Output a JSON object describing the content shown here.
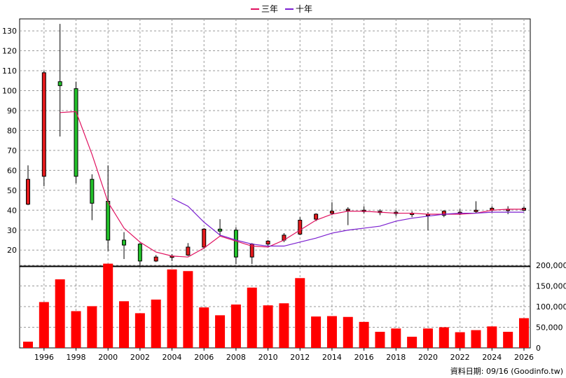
{
  "legend": [
    {
      "label": "三年",
      "color": "#e0115f"
    },
    {
      "label": "十年",
      "color": "#7b1fd0"
    }
  ],
  "footer": "資料日期: 09/16 (Goodinfo.tw)",
  "colors": {
    "up": "#e41a1c",
    "down": "#22c02a",
    "volume": "#ff0000",
    "grid": "#9a9a9a"
  },
  "chart_data": [
    {
      "type": "candlestick",
      "title": "",
      "ylim": [
        12,
        136
      ],
      "yticks": [
        20,
        30,
        40,
        50,
        60,
        70,
        80,
        90,
        100,
        110,
        120,
        130
      ],
      "grid": true,
      "legend_position": "top-center",
      "candles": [
        {
          "year": 1995,
          "open": 43,
          "high": 62.5,
          "low": 42.5,
          "close": 55.5
        },
        {
          "year": 1996,
          "open": 57,
          "high": 110,
          "low": 52,
          "close": 109
        },
        {
          "year": 1997,
          "open": 104.5,
          "high": 133.5,
          "low": 77,
          "close": 102.5
        },
        {
          "year": 1998,
          "open": 101,
          "high": 104.5,
          "low": 53.5,
          "close": 57
        },
        {
          "year": 1999,
          "open": 55.5,
          "high": 58,
          "low": 35,
          "close": 43.5
        },
        {
          "year": 2000,
          "open": 44.5,
          "high": 62.5,
          "low": 19.5,
          "close": 25
        },
        {
          "year": 2001,
          "open": 25,
          "high": 29,
          "low": 15.5,
          "close": 22.5
        },
        {
          "year": 2002,
          "open": 23,
          "high": 23.5,
          "low": 11.5,
          "close": 14.5
        },
        {
          "year": 2003,
          "open": 14.5,
          "high": 17.5,
          "low": 14,
          "close": 16.5
        },
        {
          "year": 2004,
          "open": 16.5,
          "high": 18,
          "low": 14.5,
          "close": 17
        },
        {
          "year": 2005,
          "open": 17.5,
          "high": 23.5,
          "low": 17,
          "close": 21.5
        },
        {
          "year": 2006,
          "open": 21.5,
          "high": 31,
          "low": 20.5,
          "close": 30.5
        },
        {
          "year": 2007,
          "open": 30.5,
          "high": 35.5,
          "low": 27,
          "close": 29.5
        },
        {
          "year": 2008,
          "open": 30,
          "high": 31.5,
          "low": 13,
          "close": 16.5
        },
        {
          "year": 2009,
          "open": 16.5,
          "high": 23.5,
          "low": 13,
          "close": 23
        },
        {
          "year": 2010,
          "open": 23,
          "high": 25,
          "low": 22,
          "close": 24.5
        },
        {
          "year": 2011,
          "open": 25,
          "high": 28.5,
          "low": 24,
          "close": 27.5
        },
        {
          "year": 2012,
          "open": 28,
          "high": 36.5,
          "low": 27.5,
          "close": 35
        },
        {
          "year": 2013,
          "open": 35.5,
          "high": 38.5,
          "low": 34.5,
          "close": 38
        },
        {
          "year": 2014,
          "open": 38.5,
          "high": 44,
          "low": 37.5,
          "close": 39.5
        },
        {
          "year": 2015,
          "open": 40,
          "high": 41.5,
          "low": 32.5,
          "close": 40.5
        },
        {
          "year": 2016,
          "open": 39.5,
          "high": 42,
          "low": 38.5,
          "close": 40
        },
        {
          "year": 2017,
          "open": 39,
          "high": 40.5,
          "low": 37.5,
          "close": 39.5
        },
        {
          "year": 2018,
          "open": 38.5,
          "high": 40,
          "low": 37,
          "close": 39
        },
        {
          "year": 2019,
          "open": 38,
          "high": 39.5,
          "low": 36.5,
          "close": 38.5
        },
        {
          "year": 2020,
          "open": 37.5,
          "high": 39,
          "low": 30,
          "close": 38
        },
        {
          "year": 2021,
          "open": 37.5,
          "high": 40,
          "low": 36.5,
          "close": 39.5
        },
        {
          "year": 2022,
          "open": 38.5,
          "high": 40.5,
          "low": 37.5,
          "close": 39
        },
        {
          "year": 2023,
          "open": 39.5,
          "high": 44.5,
          "low": 38.5,
          "close": 40
        },
        {
          "year": 2024,
          "open": 40,
          "high": 42,
          "low": 39,
          "close": 41
        },
        {
          "year": 2025,
          "open": 40.5,
          "high": 42,
          "low": 38,
          "close": 40.5
        },
        {
          "year": 2026,
          "open": 40,
          "high": 42,
          "low": 39.5,
          "close": 41
        }
      ],
      "series": [
        {
          "name": "三年",
          "color": "#e0115f",
          "x": [
            1997,
            1998,
            1999,
            2000,
            2001,
            2002,
            2003,
            2004,
            2005,
            2006,
            2007,
            2008,
            2009,
            2010,
            2011,
            2012,
            2013,
            2014,
            2015,
            2016,
            2017,
            2018,
            2019,
            2020,
            2021,
            2022,
            2023,
            2024,
            2025,
            2026
          ],
          "values": [
            89,
            89.5,
            68,
            44,
            31,
            24,
            19,
            17,
            16.5,
            21,
            27,
            24.5,
            22,
            21.5,
            25,
            30,
            35,
            38,
            39.5,
            39.5,
            39,
            38.5,
            38.5,
            38,
            38,
            38,
            38.5,
            40,
            40.5,
            40.5
          ]
        },
        {
          "name": "十年",
          "color": "#7b1fd0",
          "x": [
            2004,
            2005,
            2006,
            2007,
            2008,
            2009,
            2010,
            2011,
            2012,
            2013,
            2014,
            2015,
            2016,
            2017,
            2018,
            2019,
            2020,
            2021,
            2022,
            2023,
            2024,
            2025,
            2026
          ],
          "values": [
            46,
            42,
            34,
            27.5,
            25,
            23,
            22,
            22,
            24,
            26,
            28.5,
            30,
            31,
            32,
            34.5,
            36,
            37,
            38,
            38.5,
            38.5,
            39,
            39,
            39
          ]
        }
      ]
    },
    {
      "type": "bar",
      "title": "",
      "ylim": [
        0,
        200000
      ],
      "yticks": [
        "0",
        "50,000",
        "100,000",
        "150,000",
        "200,000"
      ],
      "xticks": [
        "1996",
        "1998",
        "2000",
        "2002",
        "2004",
        "2006",
        "2008",
        "2010",
        "2012",
        "2014",
        "2016",
        "2018",
        "2020",
        "2022",
        "2024",
        "2026"
      ],
      "categories": [
        1995,
        1996,
        1997,
        1998,
        1999,
        2000,
        2001,
        2002,
        2003,
        2004,
        2005,
        2006,
        2007,
        2008,
        2009,
        2010,
        2011,
        2012,
        2013,
        2014,
        2015,
        2016,
        2017,
        2018,
        2019,
        2020,
        2021,
        2022,
        2023,
        2024,
        2025,
        2026
      ],
      "values": [
        15000,
        111000,
        166000,
        89000,
        101000,
        204000,
        113000,
        84000,
        117000,
        190000,
        186000,
        98000,
        79000,
        105000,
        146000,
        103000,
        108000,
        169000,
        76000,
        77000,
        75000,
        63000,
        39000,
        47000,
        27000,
        47000,
        50000,
        38000,
        43000,
        52000,
        39000,
        72000
      ]
    }
  ]
}
